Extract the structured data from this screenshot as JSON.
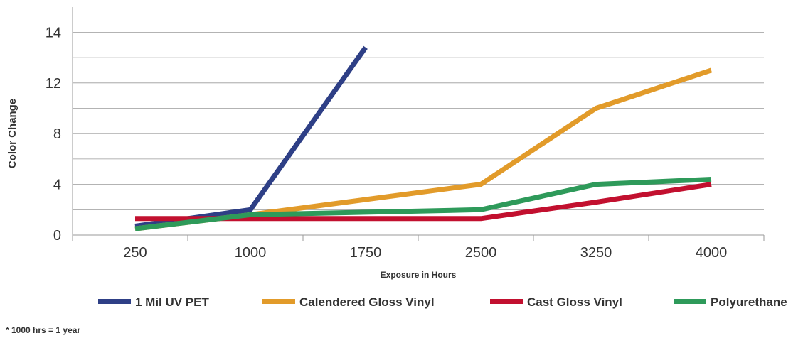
{
  "chart_data": {
    "type": "line",
    "categories": [
      "250",
      "1000",
      "1750",
      "2500",
      "3250",
      "4000"
    ],
    "y_ticks": [
      "0",
      "4",
      "8",
      "12",
      "14"
    ],
    "ylabel": "Color Change",
    "xlabel": "Exposure in Hours",
    "grid": true,
    "legend_position": "bottom",
    "footnote": "* 1000 hrs = 1 year",
    "series": [
      {
        "name": "1 Mil UV PET",
        "color": "#2e3f86",
        "points": [
          [
            250,
            0.7
          ],
          [
            1000,
            2.0
          ],
          [
            1750,
            14.8
          ]
        ]
      },
      {
        "name": "Calendered Gloss Vinyl",
        "color": "#e29b2a",
        "points": [
          [
            250,
            0.5
          ],
          [
            1000,
            1.6
          ],
          [
            1750,
            2.8
          ],
          [
            2500,
            4.0
          ],
          [
            3250,
            10.0
          ],
          [
            4000,
            13.0
          ]
        ]
      },
      {
        "name": "Cast Gloss Vinyl",
        "color": "#c2102f",
        "points": [
          [
            250,
            1.3
          ],
          [
            1000,
            1.3
          ],
          [
            1750,
            1.3
          ],
          [
            2500,
            1.3
          ],
          [
            3250,
            2.6
          ],
          [
            4000,
            4.0
          ]
        ]
      },
      {
        "name": "Polyurethane",
        "color": "#2e9a5a",
        "points": [
          [
            250,
            0.5
          ],
          [
            1000,
            1.6
          ],
          [
            1750,
            1.8
          ],
          [
            2500,
            2.0
          ],
          [
            3250,
            4.0
          ],
          [
            4000,
            4.4
          ]
        ]
      }
    ]
  }
}
